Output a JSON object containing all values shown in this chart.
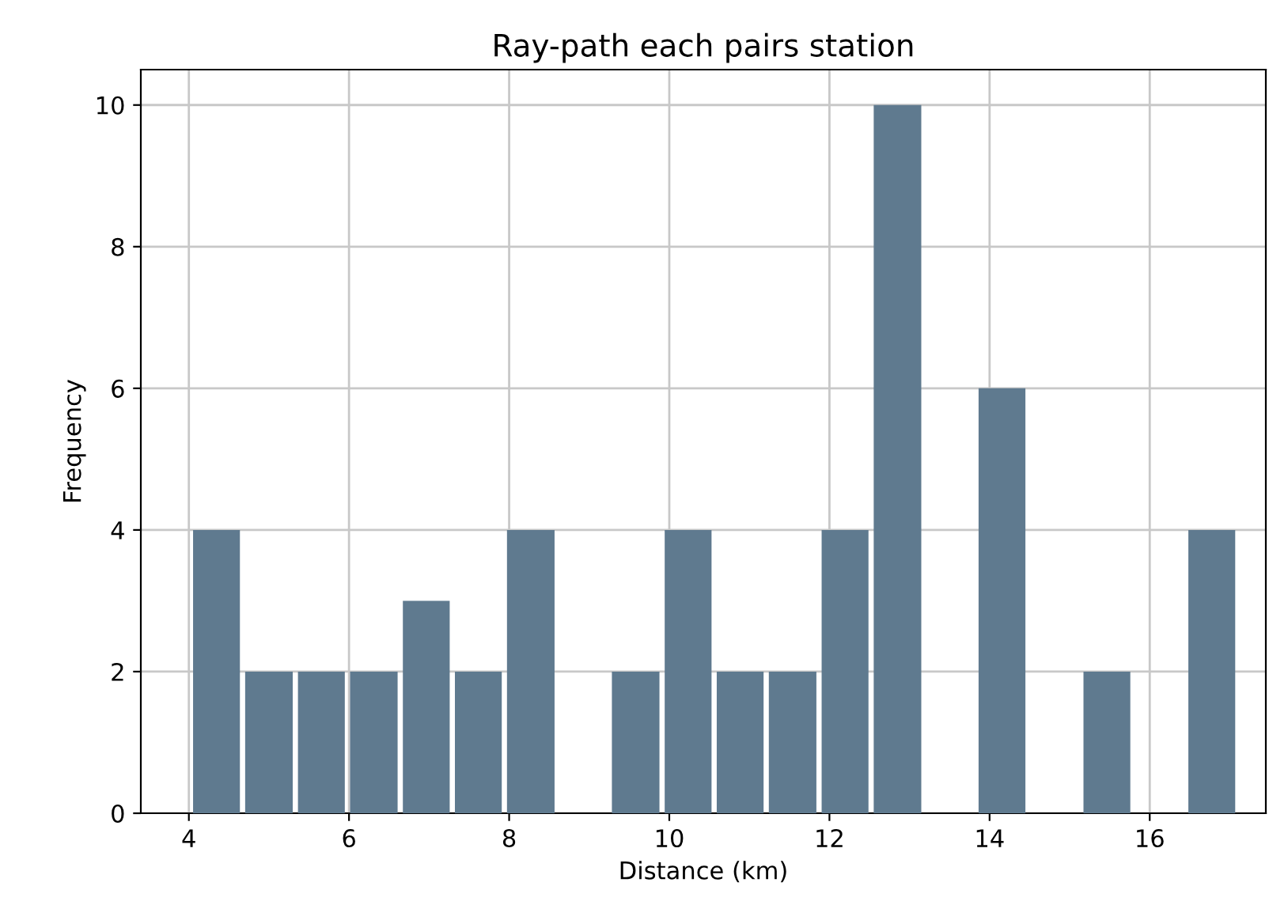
{
  "chart_data": {
    "type": "histogram",
    "title": "Ray-path each pairs station",
    "xlabel": "Distance (km)",
    "ylabel": "Frequency",
    "bins": [
      4.02,
      4.67,
      5.33,
      5.98,
      6.64,
      7.29,
      7.94,
      8.6,
      9.25,
      9.91,
      10.56,
      11.21,
      11.87,
      12.52,
      13.18,
      13.83,
      14.48,
      15.14,
      15.79,
      16.45,
      17.1
    ],
    "values": [
      4,
      2,
      2,
      2,
      3,
      2,
      4,
      0,
      2,
      4,
      2,
      2,
      4,
      10,
      0,
      6,
      0,
      2,
      0,
      4
    ],
    "color": "#5f7a8f",
    "xlim": [
      3.4,
      17.45
    ],
    "xticks": [
      4,
      6,
      8,
      10,
      12,
      14,
      16
    ],
    "ylim": [
      0,
      10.5
    ],
    "yticks": [
      0,
      2,
      4,
      6,
      8,
      10
    ],
    "grid": true
  }
}
